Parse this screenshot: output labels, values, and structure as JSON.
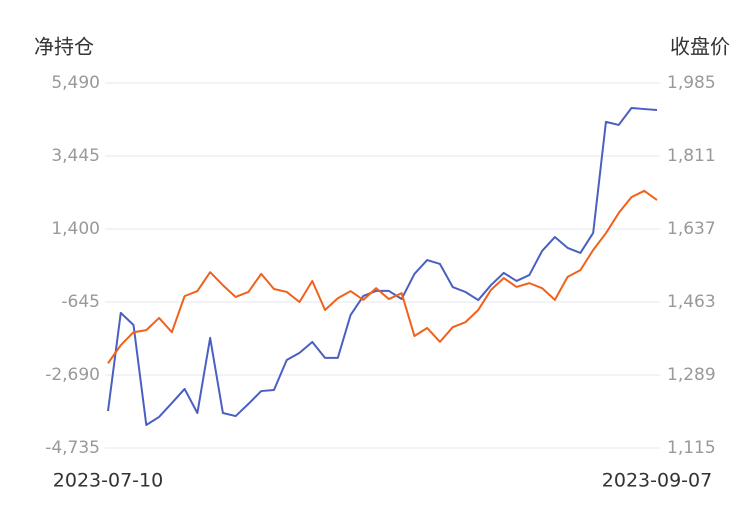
{
  "chart_data": {
    "type": "line",
    "y_title": "净持仓",
    "y2_title": "收盘价",
    "categories": [
      "2023-07-10",
      null,
      null,
      null,
      null,
      null,
      null,
      null,
      null,
      null,
      null,
      null,
      null,
      null,
      null,
      null,
      null,
      null,
      null,
      null,
      null,
      null,
      null,
      null,
      null,
      null,
      null,
      null,
      null,
      null,
      null,
      null,
      null,
      null,
      null,
      null,
      null,
      null,
      null,
      null,
      null,
      null,
      null,
      "2023-09-07"
    ],
    "ylim": [
      -4735,
      5490
    ],
    "yticks": [
      {
        "value": -4735,
        "label": "-4,735"
      },
      {
        "value": -2690,
        "label": "-2,690"
      },
      -645,
      {
        "value": 1400,
        "label": "1,400"
      },
      {
        "value": 3445,
        "label": "3,445"
      },
      {
        "value": 5490,
        "label": "5,490"
      }
    ],
    "y2lim": [
      1115,
      1985
    ],
    "y2ticks": [
      {
        "value": 1115,
        "label": "1,115"
      },
      {
        "value": 1289,
        "label": "1,289"
      },
      {
        "value": 1463,
        "label": "1,463"
      },
      {
        "value": 1637,
        "label": "1,637"
      },
      {
        "value": 1811,
        "label": "1,811"
      },
      {
        "value": 1985,
        "label": "1,985"
      }
    ],
    "grid": true,
    "series": [
      {
        "name": "净持仓",
        "color": "#4a5fc1",
        "axis": "y",
        "values": [
          -3700,
          -950,
          -1290,
          -4090,
          -3865,
          -3475,
          -3080,
          -3755,
          -1650,
          -3755,
          -3840,
          -3500,
          -3140,
          -3110,
          -2270,
          -2070,
          -1765,
          -2210,
          -2210,
          -1010,
          -475,
          -335,
          -335,
          -560,
          140,
          530,
          420,
          -225,
          -365,
          -590,
          -170,
          170,
          -55,
          110,
          785,
          1175,
          870,
          730,
          1290,
          4400,
          4315,
          4790,
          4760,
          4735
        ]
      },
      {
        "name": "收盘价",
        "color": "#f0621c",
        "axis": "y2",
        "values": [
          1317,
          1360,
          1391,
          1396,
          1425,
          1391,
          1477,
          1489,
          1534,
          1503,
          1475,
          1487,
          1530,
          1494,
          1487,
          1463,
          1513,
          1444,
          1472,
          1489,
          1468,
          1496,
          1470,
          1484,
          1382,
          1401,
          1368,
          1403,
          1415,
          1444,
          1492,
          1520,
          1499,
          1508,
          1496,
          1468,
          1523,
          1539,
          1587,
          1627,
          1675,
          1713,
          1728,
          1706
        ]
      }
    ]
  }
}
